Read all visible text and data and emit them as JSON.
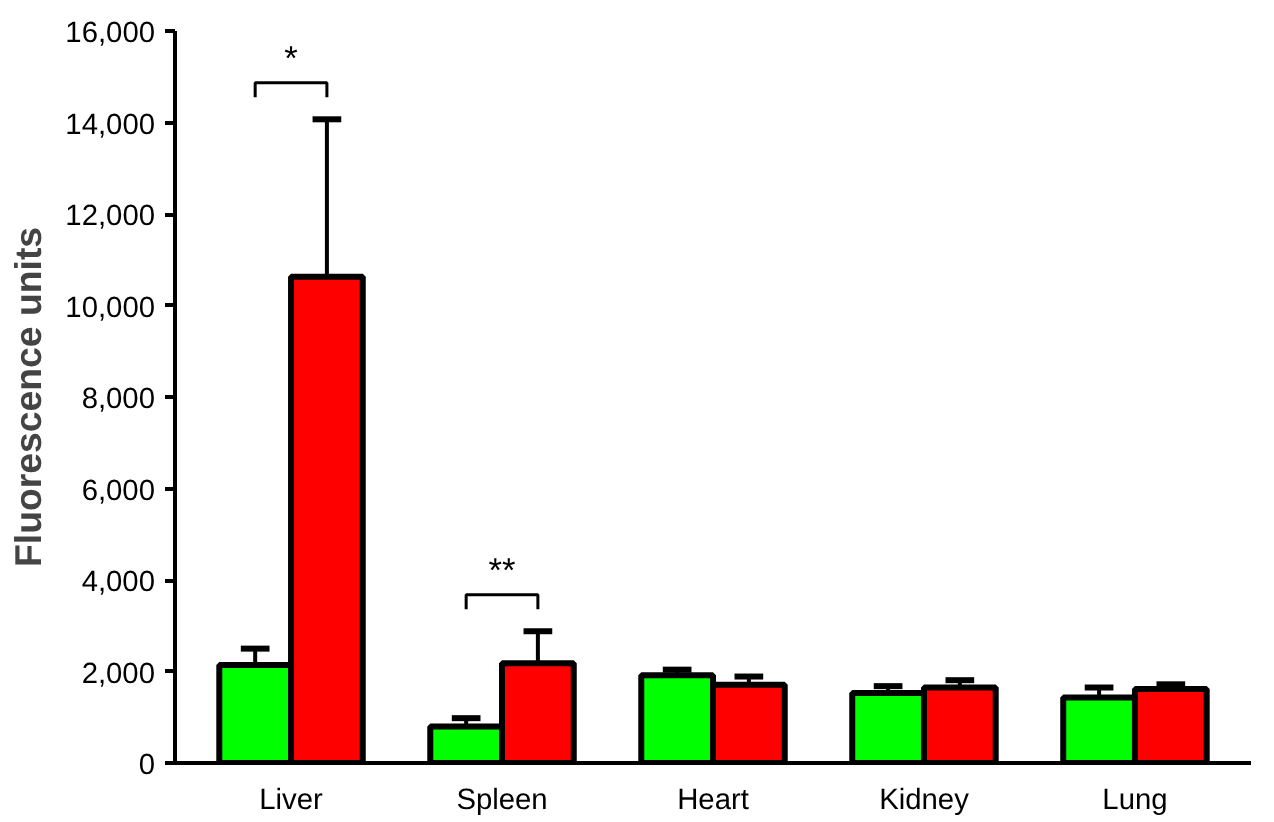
{
  "chart_data": {
    "type": "bar",
    "ylabel": "Fluorescence units",
    "categories": [
      "Liver",
      "Spleen",
      "Heart",
      "Kidney",
      "Lung"
    ],
    "series": [
      {
        "color": "#00ff00",
        "values": [
          2140,
          800,
          1920,
          1530,
          1430
        ],
        "errors": [
          [
            2140,
            2500
          ],
          [
            800,
            980
          ],
          [
            1920,
            2040
          ],
          [
            1530,
            1680
          ],
          [
            1430,
            1650
          ]
        ]
      },
      {
        "color": "#ff0000",
        "values": [
          10630,
          2180,
          1710,
          1650,
          1620
        ],
        "errors": [
          [
            10630,
            14070
          ],
          [
            2180,
            2880
          ],
          [
            1710,
            1890
          ],
          [
            1650,
            1810
          ],
          [
            1620,
            1720
          ]
        ]
      }
    ],
    "ylim": [
      0,
      16000
    ],
    "yticks": [
      {
        "value": 0,
        "label": "0"
      },
      {
        "value": 2000,
        "label": "2,000"
      },
      {
        "value": 4000,
        "label": "4,000"
      },
      {
        "value": 6000,
        "label": "6,000"
      },
      {
        "value": 8000,
        "label": "8,000"
      },
      {
        "value": 10000,
        "label": "10,000"
      },
      {
        "value": 12000,
        "label": "12,000"
      },
      {
        "value": 14000,
        "label": "14,000"
      },
      {
        "value": 16000,
        "label": "16,000"
      }
    ],
    "annotations": [
      "*",
      "**"
    ],
    "grid": false
  }
}
